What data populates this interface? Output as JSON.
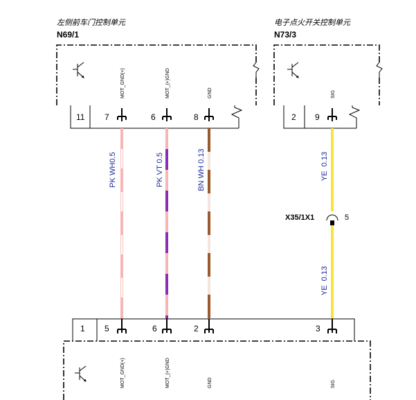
{
  "modules": [
    {
      "name": "左侧前车门控制单元",
      "code": "N69/1",
      "signals": [
        "MOT_GND(+)",
        "MOT_(+)GND",
        "GND"
      ],
      "pins": [
        "11",
        "7",
        "6",
        "8"
      ]
    },
    {
      "name": "电子点火开关控制单元",
      "code": "N73/3",
      "signals": [
        "SIG"
      ],
      "pins": [
        "2",
        "9"
      ]
    }
  ],
  "wires": [
    {
      "labels": [
        "PK WH0.5"
      ]
    },
    {
      "labels": [
        "PK VT 0.5"
      ]
    },
    {
      "labels": [
        "BN WH 0.13"
      ]
    },
    {
      "labels": [
        "YE  0.13",
        "YE  0.13"
      ]
    }
  ],
  "splice": {
    "code": "X35/1X1",
    "pin": "5"
  },
  "bottom_connector": {
    "pins": [
      "1",
      "5",
      "6",
      "2",
      "3"
    ],
    "signals": [
      "MOT_GND(+)",
      "MOT_(+)GND",
      "GND",
      "SIG"
    ]
  }
}
